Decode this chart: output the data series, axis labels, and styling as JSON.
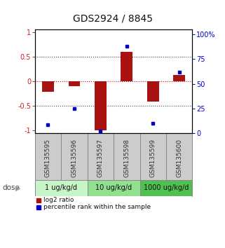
{
  "title": "GDS2924 / 8845",
  "samples": [
    "GSM135595",
    "GSM135596",
    "GSM135597",
    "GSM135598",
    "GSM135599",
    "GSM135600"
  ],
  "log2_ratio": [
    -0.22,
    -0.1,
    -1.0,
    0.6,
    -0.42,
    0.13
  ],
  "percentile_rank": [
    8,
    25,
    2,
    88,
    10,
    62
  ],
  "dose_groups": [
    {
      "label": "1 ug/kg/d",
      "cols": [
        0,
        1
      ],
      "color": "#c8f5c8"
    },
    {
      "label": "10 ug/kg/d",
      "cols": [
        2,
        3
      ],
      "color": "#90e090"
    },
    {
      "label": "1000 ug/kg/d",
      "cols": [
        4,
        5
      ],
      "color": "#50c050"
    }
  ],
  "bar_color": "#aa1111",
  "dot_color": "#0000cc",
  "bar_width": 0.45,
  "ylim_left": [
    -1.05,
    1.05
  ],
  "ylim_right": [
    0,
    105
  ],
  "yticks_left": [
    -1,
    -0.5,
    0,
    0.5,
    1
  ],
  "yticks_right": [
    0,
    25,
    50,
    75,
    100
  ],
  "ytick_labels_left": [
    "-1",
    "-0.5",
    "0",
    "0.5",
    "1"
  ],
  "ytick_labels_right": [
    "0",
    "25",
    "50",
    "75",
    "100%"
  ],
  "hlines": [
    -0.5,
    0,
    0.5
  ],
  "hline_colors": [
    "#444444",
    "#cc0000",
    "#444444"
  ],
  "hline_styles": [
    "dotted",
    "dotted",
    "dotted"
  ],
  "background_color": "#ffffff",
  "sample_box_color": "#cccccc",
  "left_tick_color": "#cc2222",
  "right_tick_color": "#0000cc",
  "title_fontsize": 10,
  "tick_fontsize": 7,
  "sample_fontsize": 6.5,
  "dose_fontsize": 7,
  "legend_fontsize": 6.5
}
